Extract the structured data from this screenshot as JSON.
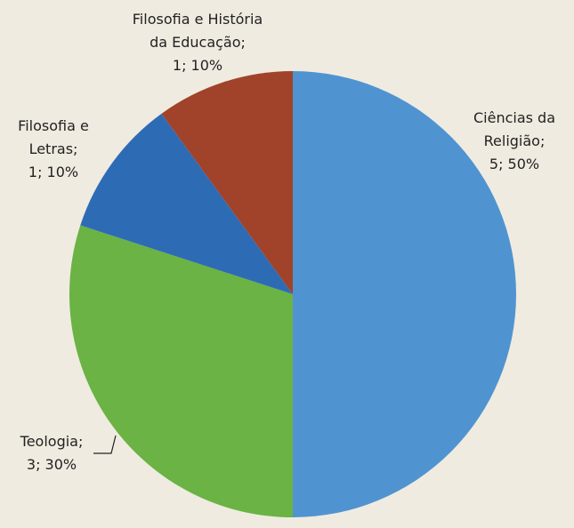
{
  "chart_data": {
    "type": "pie",
    "categories": [
      "Ciências da Religião;",
      "Teologia;",
      "Filosofia e Letras;",
      "Filosofia e História da Educação;"
    ],
    "values": [
      5,
      3,
      1,
      1
    ],
    "value_labels": [
      "5; 50%",
      "3; 30%",
      "1; 10%",
      "1; 10%"
    ],
    "colors": [
      "#4f94d1",
      "#6ab344",
      "#2e6bb5",
      "#a0432a"
    ]
  }
}
